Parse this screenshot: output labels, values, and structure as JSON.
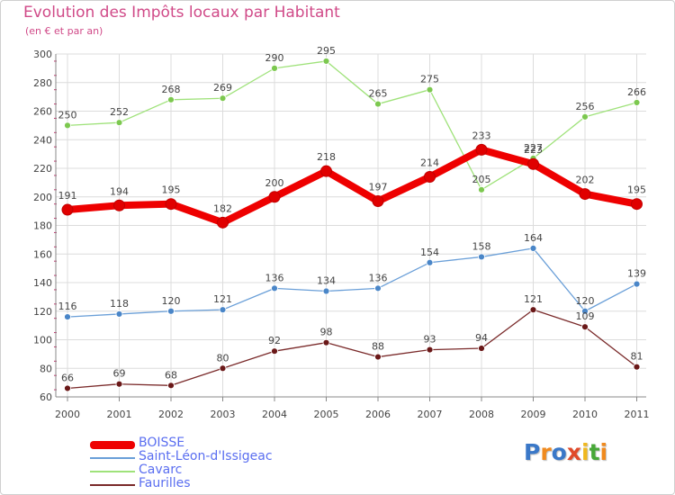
{
  "header": {
    "title": "Evolution des Impôts locaux par Habitant",
    "subtitle": "(en € et par an)"
  },
  "logo": {
    "text": "Proxiti",
    "letters": [
      "P",
      "r",
      "o",
      "x",
      "i",
      "t",
      "i"
    ],
    "colors": [
      "#3a78c8",
      "#f08a1e",
      "#3a78c8",
      "#e04a2a",
      "#f0b81e",
      "#48a838",
      "#f08a1e"
    ]
  },
  "chart_data": {
    "type": "line",
    "title": "Evolution des Impôts locaux par Habitant",
    "subtitle": "(en € et par an)",
    "xlabel": "",
    "ylabel": "",
    "x": [
      "2000",
      "2001",
      "2002",
      "2003",
      "2004",
      "2005",
      "2006",
      "2007",
      "2008",
      "2009",
      "2010",
      "2011"
    ],
    "ylim": [
      60,
      300
    ],
    "yticks": [
      60,
      80,
      100,
      120,
      140,
      160,
      180,
      200,
      220,
      240,
      260,
      280,
      300
    ],
    "grid": true,
    "legend_position": "bottom-left",
    "series": [
      {
        "name": "BOISSE",
        "color": "#ee0000",
        "marker": "#e00000",
        "width": "thick",
        "values": [
          191,
          194,
          195,
          182,
          200,
          218,
          197,
          214,
          233,
          223,
          202,
          195
        ]
      },
      {
        "name": "Saint-Léon-d'Issigeac",
        "color": "#6a9fd8",
        "marker": "#4a86c8",
        "width": "thin",
        "values": [
          116,
          118,
          120,
          121,
          136,
          134,
          136,
          154,
          158,
          164,
          120,
          139
        ]
      },
      {
        "name": "Cavarc",
        "color": "#9fe27a",
        "marker": "#7cc84f",
        "width": "thin",
        "values": [
          250,
          252,
          268,
          269,
          290,
          295,
          265,
          275,
          205,
          227,
          256,
          266
        ]
      },
      {
        "name": "Faurilles",
        "color": "#7a2a2a",
        "marker": "#6a1818",
        "width": "thin",
        "values": [
          66,
          69,
          68,
          80,
          92,
          98,
          88,
          93,
          94,
          121,
          109,
          81
        ]
      }
    ]
  }
}
